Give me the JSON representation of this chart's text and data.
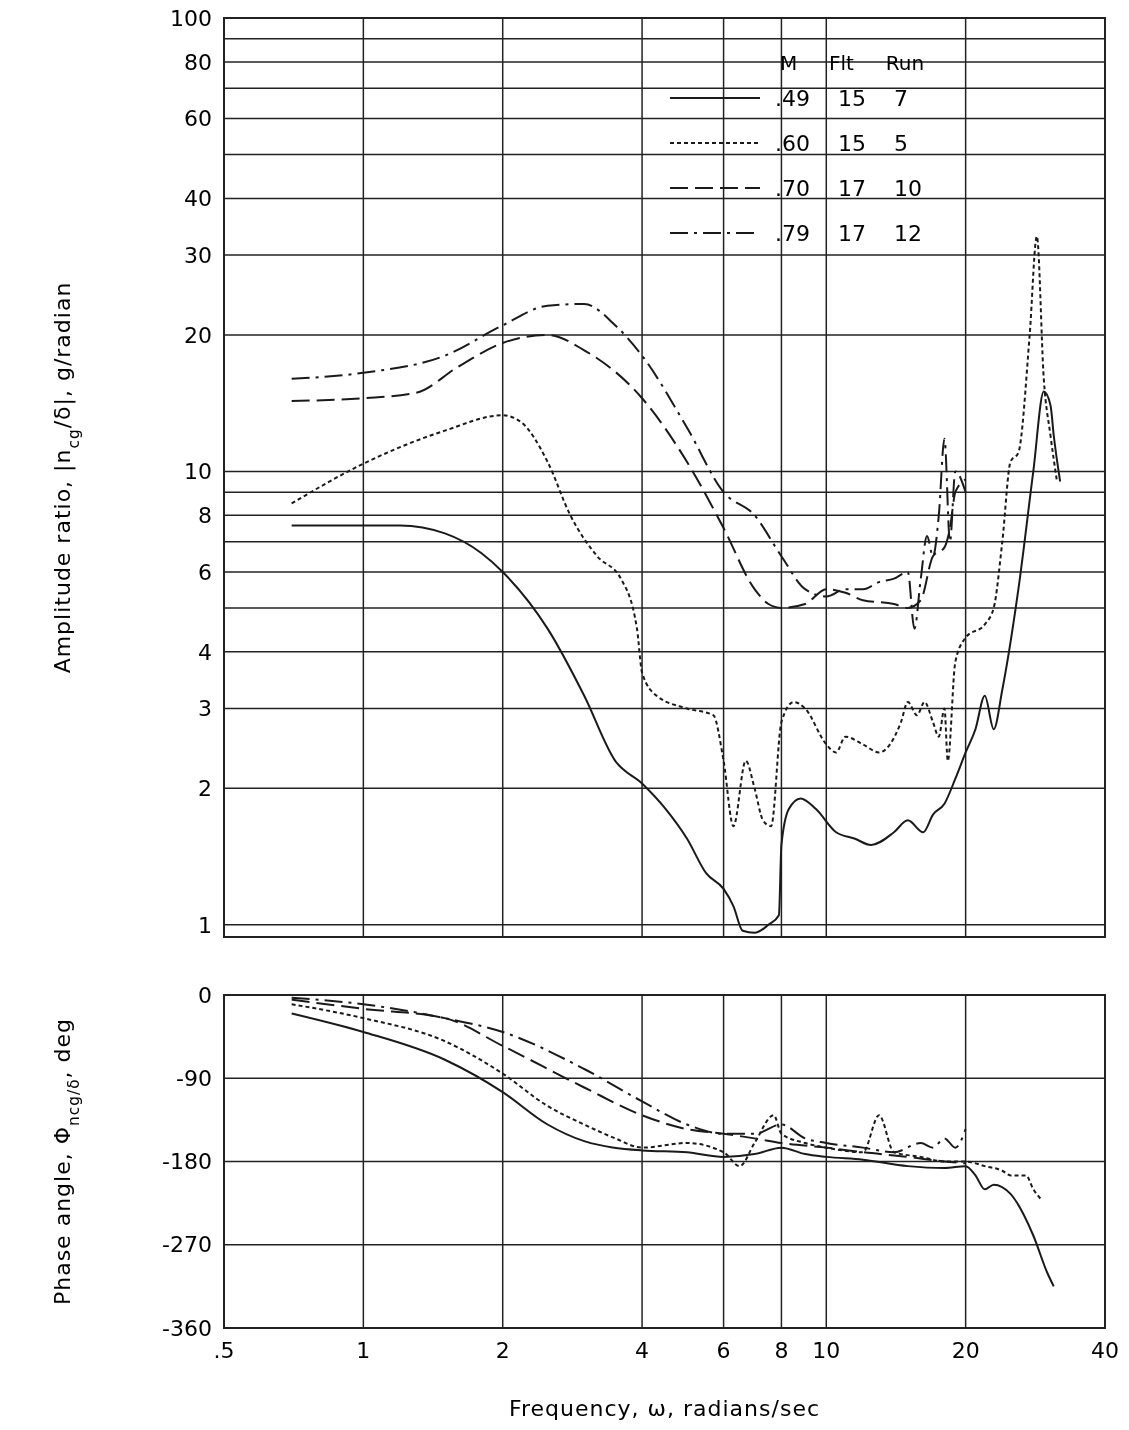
{
  "chart_data": [
    {
      "type": "line",
      "ylabel": "Amplitude ratio, |n$_{cg}$/δ|, g/radian",
      "log": "xy",
      "xlim": [
        0.5,
        40
      ],
      "xticks": [
        0.5,
        1,
        2,
        4,
        6,
        8,
        10,
        20,
        40
      ],
      "ylim": [
        0.94,
        100
      ],
      "yticks": [
        1,
        2,
        3,
        4,
        {
          "value": 5,
          "label": null
        },
        6,
        {
          "value": 7,
          "label": null
        },
        8,
        {
          "value": 9,
          "label": null
        },
        10,
        20,
        30,
        40,
        {
          "value": 50,
          "label": null
        },
        60,
        {
          "value": 70,
          "label": null
        },
        80,
        {
          "value": 90,
          "label": null
        },
        100
      ],
      "grid": true,
      "tick_labels": "y",
      "legend": "top right",
      "legend_title": "M Flt Run",
      "series": [
        {
          "name": ".49 15 7",
          "color": "#1a1a1a",
          "line_style": "solid",
          "x": [
            0.7,
            1.2,
            1.5,
            1.8,
            2,
            2.5,
            3,
            3.5,
            4,
            4.5,
            5,
            5.5,
            6,
            6.3,
            6.6,
            7,
            7.5,
            7.9,
            8,
            8.3,
            8.8,
            9.5,
            10.5,
            11.5,
            12.5,
            14,
            15,
            16.2,
            17,
            18,
            19,
            20,
            21,
            22,
            23,
            24,
            26,
            28,
            29.5,
            30.5,
            31,
            32
          ],
          "values": [
            7.6,
            7.6,
            7.3,
            6.6,
            6.0,
            4.5,
            3.2,
            2.3,
            2.05,
            1.8,
            1.55,
            1.3,
            1.2,
            1.1,
            0.97,
            0.96,
            1.0,
            1.05,
            1.5,
            1.8,
            1.9,
            1.8,
            1.6,
            1.55,
            1.5,
            1.6,
            1.7,
            1.6,
            1.75,
            1.85,
            2.1,
            2.4,
            2.7,
            3.2,
            2.7,
            3.3,
            5.5,
            10,
            15,
            14,
            12,
            9.5
          ]
        },
        {
          "name": ".60 15 5",
          "color": "#1a1a1a",
          "line_style": "dotted",
          "x": [
            0.7,
            1,
            1.5,
            2,
            2.2,
            2.5,
            2.8,
            3.2,
            3.6,
            3.9,
            4,
            4.3,
            5,
            5.7,
            6,
            6.3,
            6.7,
            7,
            7.3,
            7.6,
            8,
            8.5,
            9,
            10,
            10.5,
            11,
            12,
            13,
            14.5,
            15,
            15.7,
            16.3,
            17,
            17.5,
            18,
            18.3,
            19,
            20,
            22,
            23,
            24,
            25,
            26,
            27.5,
            28.5,
            29.5,
            30.5,
            31.5
          ],
          "values": [
            8.5,
            10.4,
            12.3,
            13.3,
            12.8,
            10.5,
            8,
            6.5,
            5.8,
            4.5,
            3.6,
            3.2,
            3.0,
            2.9,
            2.3,
            1.65,
            2.3,
            2.0,
            1.7,
            1.65,
            2.8,
            3.1,
            3.0,
            2.5,
            2.4,
            2.6,
            2.5,
            2.4,
            2.8,
            3.1,
            2.9,
            3.1,
            2.8,
            2.6,
            3.0,
            2.3,
            3.8,
            4.3,
            4.6,
            5.0,
            7,
            10.5,
            11,
            20,
            33,
            16,
            12,
            9.5
          ]
        },
        {
          "name": ".70 17 10",
          "color": "#1a1a1a",
          "line_style": "dashed",
          "x": [
            0.7,
            1,
            1.3,
            1.6,
            2,
            2.5,
            3,
            4,
            5,
            6,
            7,
            7.5,
            8,
            9,
            10,
            11,
            12,
            14,
            15,
            16,
            17,
            18,
            18.5,
            19,
            20
          ],
          "values": [
            14.3,
            14.5,
            14.9,
            17,
            19.2,
            20,
            18.5,
            14.5,
            10.5,
            7.5,
            5.5,
            5.1,
            5.0,
            5.1,
            5.5,
            5.4,
            5.2,
            5.1,
            5.0,
            5.2,
            6.5,
            6.8,
            7.5,
            9,
            9.6
          ]
        },
        {
          "name": ".79 17 12",
          "color": "#1a1a1a",
          "line_style": "dashdot",
          "x": [
            0.7,
            1,
            1.5,
            2,
            2.5,
            3,
            3.5,
            4,
            5,
            6,
            7,
            8,
            9,
            10,
            11,
            12,
            13,
            14,
            15,
            15.5,
            16,
            16.5,
            17,
            17.5,
            18,
            18.5,
            19,
            20
          ],
          "values": [
            16,
            16.5,
            18,
            21,
            23.2,
            23.4,
            21,
            18,
            12.5,
            9,
            8,
            6.5,
            5.5,
            5.3,
            5.5,
            5.5,
            5.7,
            5.8,
            6.0,
            4.5,
            5.8,
            7.2,
            6.5,
            8,
            11.8,
            7,
            10,
            9
          ]
        }
      ]
    },
    {
      "type": "line",
      "ylabel": "Phase angle, Φ$_{ncg/δ}$, deg",
      "xlabel": "Frequency, ω, radians/sec",
      "log": "x",
      "xlim": [
        0.5,
        40
      ],
      "xticks": [
        {
          "value": 0.5,
          "label": ".5"
        },
        1,
        2,
        4,
        6,
        8,
        10,
        20,
        40
      ],
      "ylim": [
        -360,
        0
      ],
      "yticks": [
        -360,
        -270,
        -180,
        -90,
        0
      ],
      "grid": true,
      "series": [
        {
          "color": "#1a1a1a",
          "line_style": "solid",
          "x": [
            0.7,
            1,
            1.5,
            2,
            2.5,
            3,
            4,
            5,
            6,
            7,
            8,
            9,
            10,
            12,
            15,
            18,
            20,
            21,
            22,
            23,
            25,
            28,
            30,
            31
          ],
          "values": [
            -20,
            -40,
            -70,
            -105,
            -140,
            -158,
            -168,
            -170,
            -175,
            -172,
            -165,
            -172,
            -175,
            -178,
            -185,
            -187,
            -185,
            -195,
            -210,
            -205,
            -215,
            -260,
            -300,
            -315
          ]
        },
        {
          "color": "#1a1a1a",
          "line_style": "dotted",
          "x": [
            0.7,
            1,
            1.5,
            2,
            2.5,
            3,
            3.5,
            4,
            5,
            6,
            6.5,
            7,
            7.7,
            8,
            9,
            10,
            12,
            13,
            14,
            16,
            18,
            20,
            22,
            24,
            25,
            27,
            28,
            29
          ],
          "values": [
            -10,
            -25,
            -50,
            -85,
            -120,
            -140,
            -155,
            -165,
            -160,
            -170,
            -185,
            -160,
            -130,
            -150,
            -160,
            -165,
            -170,
            -130,
            -170,
            -175,
            -180,
            -180,
            -185,
            -190,
            -195,
            -195,
            -210,
            -220
          ]
        },
        {
          "color": "#1a1a1a",
          "line_style": "dashed",
          "x": [
            0.7,
            1,
            1.5,
            2,
            3,
            4,
            5,
            6,
            7,
            8,
            10,
            12,
            15,
            18,
            20
          ],
          "values": [
            -5,
            -15,
            -25,
            -55,
            -100,
            -130,
            -145,
            -150,
            -155,
            -160,
            -165,
            -170,
            -175,
            -180,
            -182
          ]
        },
        {
          "color": "#1a1a1a",
          "line_style": "dashdot",
          "x": [
            0.7,
            1,
            1.5,
            2,
            3,
            4,
            5,
            6,
            7,
            8,
            9,
            10,
            12,
            14,
            16,
            17,
            18,
            19,
            20
          ],
          "values": [
            -3,
            -10,
            -25,
            -40,
            -80,
            -115,
            -140,
            -150,
            -150,
            -140,
            -155,
            -160,
            -165,
            -170,
            -160,
            -165,
            -155,
            -165,
            -145
          ]
        }
      ]
    }
  ]
}
